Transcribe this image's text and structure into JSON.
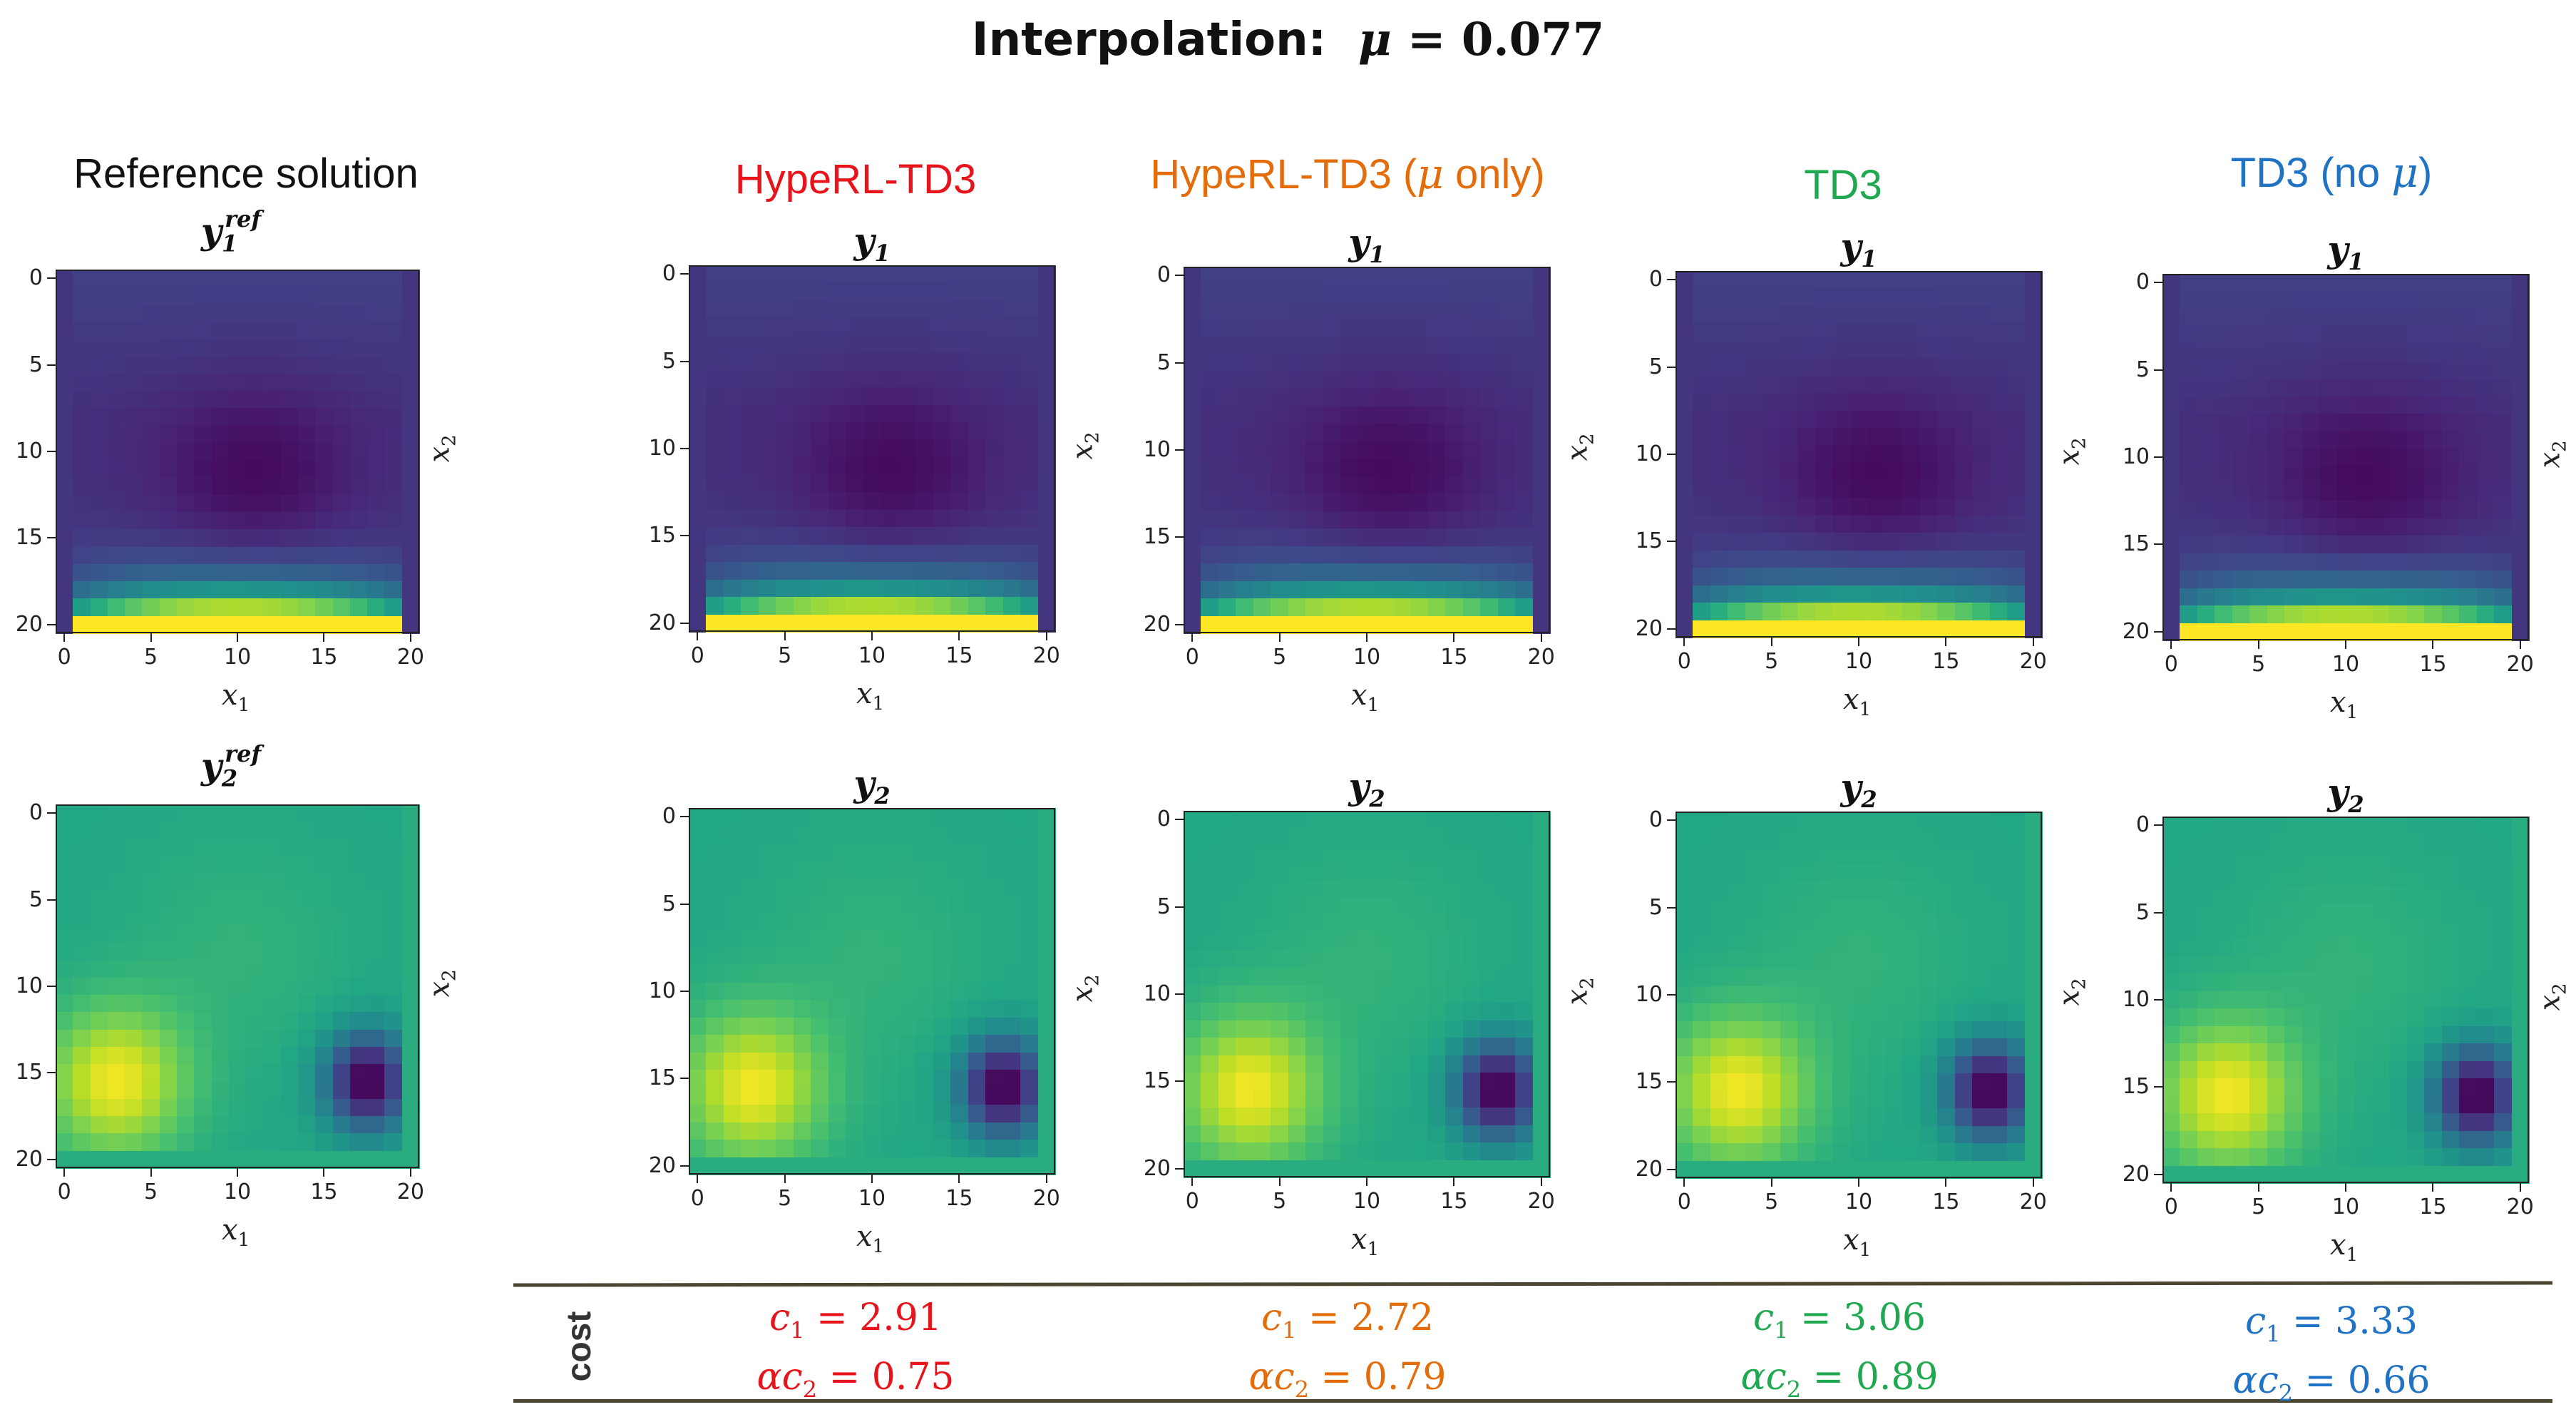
{
  "title": {
    "prefix": "Interpolation:",
    "mu_symbol": "μ",
    "equals": "=",
    "mu_value": "0.077"
  },
  "columns": [
    {
      "id": "ref",
      "header": "Reference solution",
      "header_color": "#111111",
      "top_title": "y1ref",
      "bottom_title": "y2ref"
    },
    {
      "id": "hyperl-td3",
      "header": "HypeRL-TD3",
      "header_color": "#e8141c",
      "top_title": "y1",
      "bottom_title": "y2"
    },
    {
      "id": "hyperl-td3-mu",
      "header": "HypeRL-TD3 (",
      "header_mu": "μ",
      "header_suffix": " only)",
      "header_color": "#e46c0a",
      "top_title": "y1",
      "bottom_title": "y2"
    },
    {
      "id": "td3",
      "header": "TD3",
      "header_color": "#1fa84f",
      "top_title": "y1",
      "bottom_title": "y2"
    },
    {
      "id": "td3-nomu",
      "header": "TD3 (no ",
      "header_mu": "μ",
      "header_suffix": ")",
      "header_color": "#1f72c4",
      "top_title": "y1",
      "bottom_title": "y2"
    }
  ],
  "axes": {
    "x_ticks": [
      "0",
      "5",
      "10",
      "15",
      "20"
    ],
    "y_ticks": [
      "0",
      "5",
      "10",
      "15",
      "20"
    ],
    "x_label": "x1",
    "y_label": "x2"
  },
  "cost_section": {
    "label": "cost",
    "entries": [
      {
        "c1_label": "c1 = ",
        "c1": "2.91",
        "ac2_label": "αc2 = ",
        "ac2": "0.75",
        "color": "#e8141c"
      },
      {
        "c1_label": "c1 = ",
        "c1": "2.72",
        "ac2_label": "αc2 = ",
        "ac2": "0.79",
        "color": "#e46c0a"
      },
      {
        "c1_label": "c1 = ",
        "c1": "3.06",
        "ac2_label": "αc2 = ",
        "ac2": "0.89",
        "color": "#1fa84f"
      },
      {
        "c1_label": "c1 = ",
        "c1": "3.33",
        "ac2_label": "αc2 = ",
        "ac2": "0.66",
        "color": "#1f72c4"
      }
    ]
  },
  "colormap": "viridis"
}
